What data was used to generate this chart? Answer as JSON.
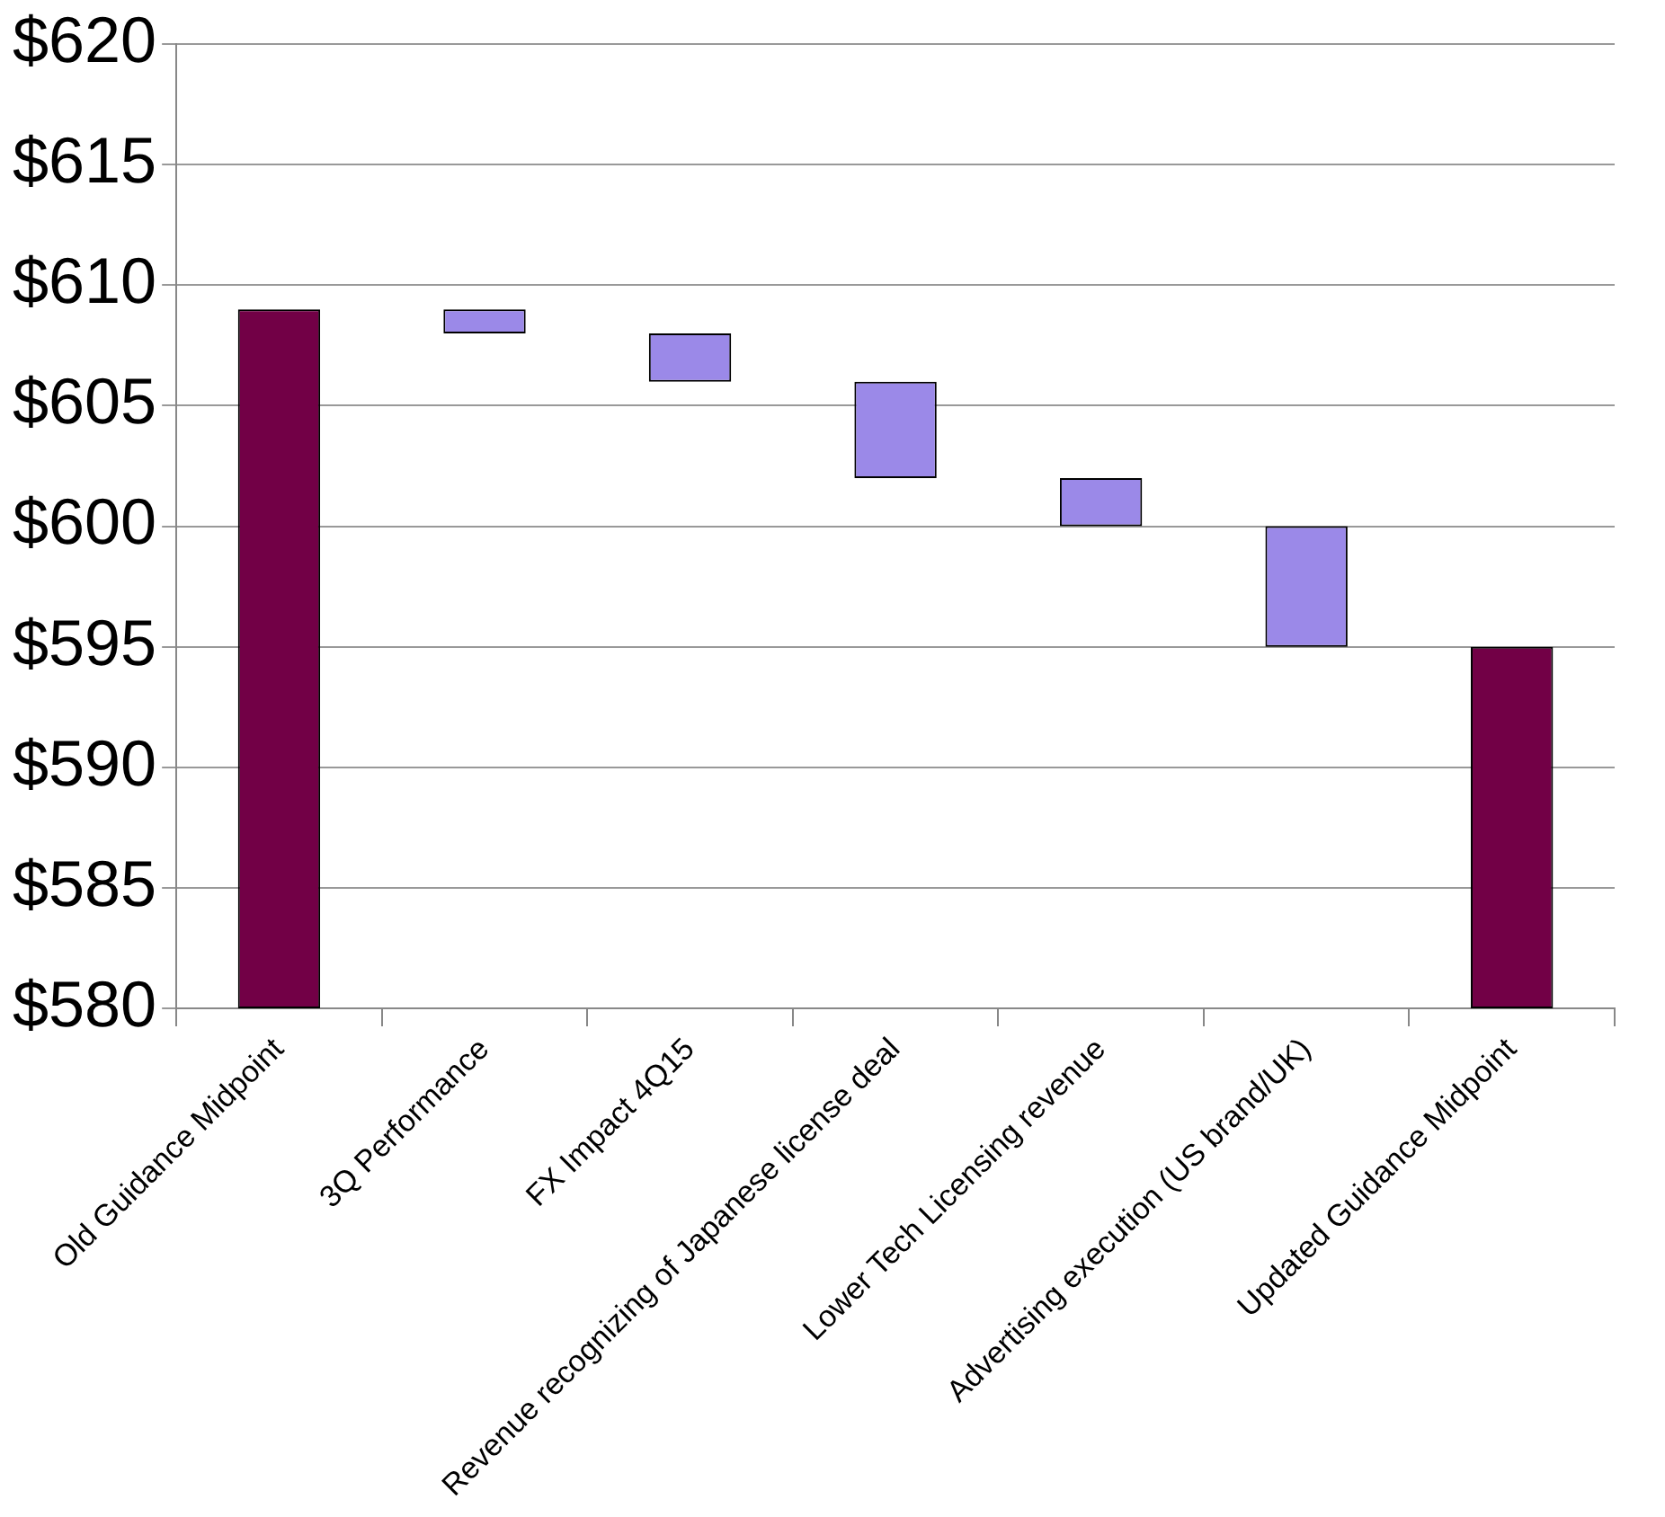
{
  "chart_data": {
    "type": "bar",
    "categories": [
      "Old Guidance Midpoint",
      "3Q Performance",
      "FX Impact 4Q15",
      "Revenue recognizing of Japanese license deal",
      "Lower Tech Licensing revenue",
      "Advertising execution (US brand/UK)",
      "Updated Guidance Midpoint"
    ],
    "base": [
      580,
      608,
      606,
      602,
      600,
      595,
      580
    ],
    "values": [
      29,
      1,
      2,
      4,
      2,
      5,
      15
    ],
    "colors": [
      "#720046",
      "#9b89e8",
      "#9b89e8",
      "#9b89e8",
      "#9b89e8",
      "#9b89e8",
      "#720046"
    ],
    "ylim": [
      580,
      620
    ],
    "yticks": [
      {
        "value": 580,
        "label": "$580"
      },
      {
        "value": 585,
        "label": "$585"
      },
      {
        "value": 590,
        "label": "$590"
      },
      {
        "value": 595,
        "label": "$595"
      },
      {
        "value": 600,
        "label": "$600"
      },
      {
        "value": 605,
        "label": "$605"
      },
      {
        "value": 610,
        "label": "$610"
      },
      {
        "value": 615,
        "label": "$615"
      },
      {
        "value": 620,
        "label": "$620"
      }
    ],
    "grid": "y",
    "legend": false
  }
}
